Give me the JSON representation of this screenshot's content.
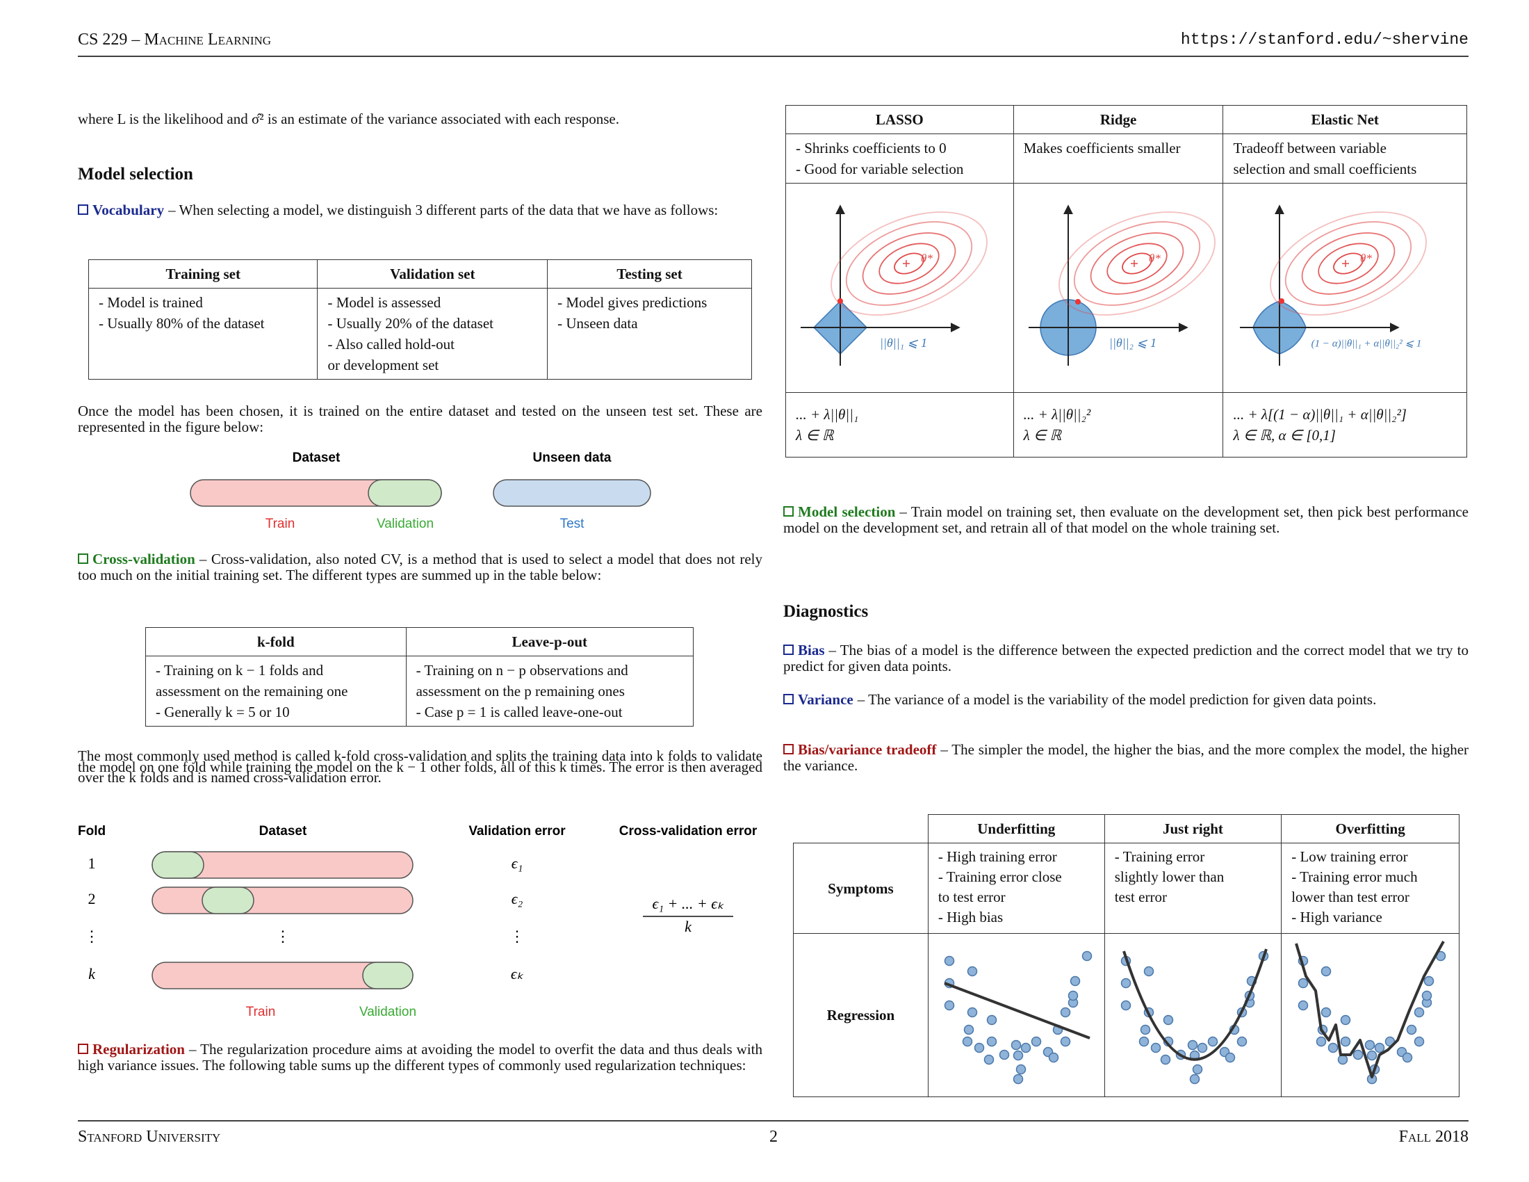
{
  "header": {
    "left": "CS 229 – Machine Learning",
    "right": "https://stanford.edu/~shervine"
  },
  "footer": {
    "left": "Stanford University",
    "page": "2",
    "right": "Fall 2018"
  },
  "left_column": {
    "intro": "where L is the likelihood and σ̂² is an estimate of the variance associated with each response.",
    "heading": "Model selection",
    "vocabulary": {
      "lead": "Vocabulary",
      "text": "– When selecting a model, we distinguish 3 different parts of the data that we have as follows:"
    },
    "data_table": {
      "headers": [
        "Training set",
        "Validation set",
        "Testing set"
      ],
      "cells": [
        [
          "- Model is trained",
          "- Usually 80% of the dataset"
        ],
        [
          "- Model is assessed",
          "- Usually 20% of the dataset",
          "- Also called hold-out",
          "or development set"
        ],
        [
          "- Model gives predictions",
          "- Unseen data"
        ]
      ]
    },
    "after_table": "Once the model has been chosen, it is trained on the entire dataset and tested on the unseen test set. These are represented in the figure below:",
    "split_figure": {
      "dataset": "Dataset",
      "unseen": "Unseen data",
      "train": "Train",
      "validation": "Validation",
      "test": "Test"
    },
    "cross_validation": {
      "lead": "Cross-validation",
      "text": "– Cross-validation, also noted CV, is a method that is used to select a model that does not rely too much on the initial training set. The different types are summed up in the table below:"
    },
    "cv_table": {
      "headers": [
        "k-fold",
        "Leave-p-out"
      ],
      "cells": [
        [
          "- Training on k − 1 folds and",
          "assessment on the remaining one",
          "- Generally k = 5 or 10"
        ],
        [
          "- Training on n − p observations and",
          "assessment on the p remaining ones",
          "- Case p = 1 is called leave-one-out"
        ]
      ]
    },
    "kfold_text": "The most commonly used method is called k-fold cross-validation and splits the training data into k folds to validate the model on one fold while training the model on the k − 1 other folds, all of this k times. The error is then averaged over the k folds and is named cross-validation error.",
    "fold_figure": {
      "headers": [
        "Fold",
        "Dataset",
        "Validation error",
        "Cross-validation error"
      ],
      "folds": [
        "1",
        "2",
        "⋮",
        "k"
      ],
      "dataset_dots": "⋮",
      "errors": [
        "ϵ₁",
        "ϵ₂",
        "⋮",
        "ϵₖ"
      ],
      "cv_numerator": "ϵ₁ + ... + ϵₖ",
      "cv_denominator": "k",
      "train": "Train",
      "validation": "Validation"
    },
    "regularization": {
      "lead": "Regularization",
      "text": "– The regularization procedure aims at avoiding the model to overfit the data and thus deals with high variance issues. The following table sums up the different types of commonly used regularization techniques:"
    }
  },
  "right_column": {
    "reg_table": {
      "headers": [
        "LASSO",
        "Ridge",
        "Elastic Net"
      ],
      "descriptions": [
        [
          "- Shrinks coefficients to 0",
          "- Good for variable selection"
        ],
        [
          "Makes coefficients smaller"
        ],
        [
          "Tradeoff between variable",
          "selection and small coefficients"
        ]
      ],
      "optimum_label": "θ*",
      "constraints": [
        "||θ||₁ ⩽ 1",
        "||θ||₂ ⩽ 1",
        "(1 − α)||θ||₁ + α||θ||₂² ⩽ 1"
      ],
      "penalties": [
        "... + λ||θ||₁",
        "... + λ||θ||₂²",
        "... + λ[(1 − α)||θ||₁ + α||θ||₂²]"
      ],
      "domains": [
        "λ ∈ ℝ",
        "λ ∈ ℝ",
        "λ ∈ ℝ,   α ∈ [0,1]"
      ]
    },
    "model_selection": {
      "lead": "Model selection",
      "text": "– Train model on training set, then evaluate on the development set, then pick best performance model on the development set, and retrain all of that model on the whole training set."
    },
    "heading": "Diagnostics",
    "bias": {
      "lead": "Bias",
      "text": "– The bias of a model is the difference between the expected prediction and the correct model that we try to predict for given data points."
    },
    "variance": {
      "lead": "Variance",
      "text": "– The variance of a model is the variability of the model prediction for given data points."
    },
    "tradeoff": {
      "lead": "Bias/variance tradeoff",
      "text": "– The simpler the model, the higher the bias, and the more complex the model, the higher the variance."
    },
    "bv_table": {
      "headers": [
        "Underfitting",
        "Just right",
        "Overfitting"
      ],
      "row_labels": [
        "Symptoms",
        "Regression"
      ],
      "symptoms": [
        [
          "- High training error",
          "- Training error close",
          "to test error",
          "- High bias"
        ],
        [
          "- Training error",
          "slightly lower than",
          "test error"
        ],
        [
          "- Low training error",
          "- Training error much",
          "lower than test error",
          "- High variance"
        ]
      ]
    }
  }
}
